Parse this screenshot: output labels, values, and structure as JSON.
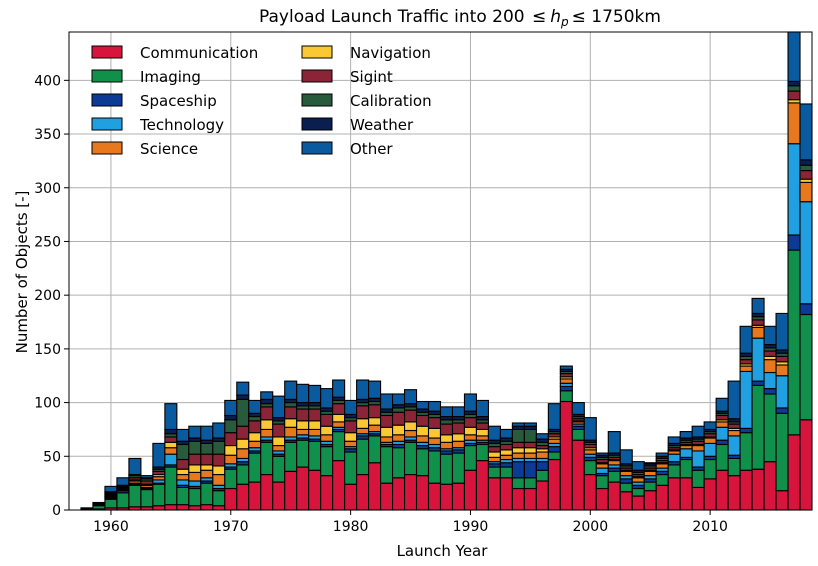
{
  "chart_data": {
    "type": "bar",
    "stacked": true,
    "title": "Payload Launch Traffic into 200 ≤ h_p ≤ 1750km",
    "title_parts": {
      "prefix": "Payload Launch Traffic into 200 ",
      "leq1": "≤",
      "var_main": "h",
      "var_sub": "p",
      "leq2": "≤",
      "suffix": " 1750km"
    },
    "xlabel": "Launch Year",
    "ylabel": "Number of Objects [-]",
    "xlim": [
      1956.5,
      2018.5
    ],
    "ylim": [
      0,
      445
    ],
    "xticks": [
      1960,
      1970,
      1980,
      1990,
      2000,
      2010
    ],
    "yticks": [
      0,
      50,
      100,
      150,
      200,
      250,
      300,
      350,
      400
    ],
    "grid": true,
    "legend_position": "top-left",
    "categories": [
      1957,
      1958,
      1959,
      1960,
      1961,
      1962,
      1963,
      1964,
      1965,
      1966,
      1967,
      1968,
      1969,
      1970,
      1971,
      1972,
      1973,
      1974,
      1975,
      1976,
      1977,
      1978,
      1979,
      1980,
      1981,
      1982,
      1983,
      1984,
      1985,
      1986,
      1987,
      1988,
      1989,
      1990,
      1991,
      1992,
      1993,
      1994,
      1995,
      1996,
      1997,
      1998,
      1999,
      2000,
      2001,
      2002,
      2003,
      2004,
      2005,
      2006,
      2007,
      2008,
      2009,
      2010,
      2011,
      2012,
      2013,
      2014,
      2015,
      2016,
      2017,
      2018
    ],
    "series": [
      {
        "name": "Communication",
        "color": "#d7143c",
        "values": [
          0,
          0,
          1,
          2,
          2,
          3,
          3,
          4,
          5,
          5,
          4,
          5,
          4,
          20,
          24,
          26,
          33,
          26,
          36,
          40,
          37,
          32,
          46,
          24,
          33,
          44,
          25,
          30,
          33,
          32,
          25,
          24,
          25,
          37,
          46,
          30,
          30,
          20,
          20,
          27,
          47,
          101,
          65,
          33,
          20,
          26,
          17,
          13,
          18,
          23,
          30,
          30,
          21,
          29,
          37,
          32,
          37,
          38,
          45,
          18,
          70,
          84
        ]
      },
      {
        "name": "Imaging",
        "color": "#10904a",
        "values": [
          0,
          1,
          3,
          8,
          14,
          20,
          16,
          20,
          35,
          16,
          16,
          20,
          14,
          18,
          18,
          27,
          30,
          24,
          27,
          25,
          27,
          27,
          27,
          30,
          33,
          25,
          34,
          28,
          30,
          25,
          30,
          28,
          28,
          23,
          15,
          10,
          10,
          10,
          10,
          10,
          7,
          10,
          10,
          13,
          12,
          10,
          8,
          7,
          8,
          10,
          12,
          17,
          16,
          18,
          24,
          16,
          35,
          78,
          63,
          72,
          172,
          98
        ]
      },
      {
        "name": "Spaceship",
        "color": "#0c3a96",
        "values": [
          0,
          0,
          0,
          1,
          2,
          1,
          1,
          1,
          2,
          2,
          2,
          2,
          2,
          2,
          3,
          2,
          2,
          2,
          2,
          2,
          2,
          2,
          2,
          3,
          3,
          2,
          2,
          3,
          2,
          3,
          3,
          3,
          3,
          2,
          2,
          3,
          4,
          15,
          15,
          8,
          5,
          4,
          3,
          3,
          2,
          3,
          4,
          3,
          3,
          3,
          3,
          2,
          3,
          3,
          4,
          3,
          4,
          4,
          5,
          5,
          14,
          10
        ]
      },
      {
        "name": "Technology",
        "color": "#20a0e0",
        "values": [
          0,
          0,
          1,
          1,
          0,
          1,
          1,
          3,
          10,
          5,
          5,
          3,
          3,
          3,
          3,
          3,
          3,
          3,
          3,
          3,
          3,
          3,
          2,
          2,
          2,
          2,
          2,
          3,
          3,
          3,
          3,
          2,
          2,
          3,
          2,
          2,
          3,
          3,
          3,
          3,
          3,
          3,
          2,
          3,
          5,
          3,
          3,
          3,
          3,
          3,
          7,
          8,
          15,
          12,
          12,
          18,
          53,
          40,
          15,
          30,
          85,
          95
        ]
      },
      {
        "name": "Science",
        "color": "#e8781e",
        "values": [
          0,
          0,
          1,
          1,
          1,
          2,
          2,
          3,
          6,
          5,
          8,
          7,
          10,
          8,
          9,
          6,
          7,
          5,
          9,
          5,
          6,
          6,
          5,
          5,
          5,
          6,
          5,
          6,
          6,
          6,
          6,
          6,
          6,
          5,
          4,
          4,
          4,
          5,
          5,
          6,
          4,
          4,
          2,
          4,
          4,
          4,
          4,
          4,
          4,
          4,
          3,
          3,
          5,
          5,
          5,
          5,
          5,
          10,
          12,
          10,
          38,
          18
        ]
      },
      {
        "name": "Navigation",
        "color": "#fac832",
        "values": [
          0,
          0,
          0,
          1,
          1,
          1,
          1,
          2,
          5,
          5,
          7,
          5,
          8,
          9,
          9,
          8,
          9,
          8,
          8,
          8,
          8,
          8,
          7,
          8,
          9,
          7,
          9,
          9,
          8,
          9,
          9,
          7,
          7,
          7,
          6,
          5,
          5,
          5,
          5,
          3,
          2,
          2,
          1,
          2,
          1,
          1,
          1,
          1,
          1,
          1,
          1,
          1,
          1,
          1,
          2,
          2,
          2,
          2,
          3,
          3,
          3,
          3
        ]
      },
      {
        "name": "Sigint",
        "color": "#8c2437",
        "values": [
          0,
          0,
          0,
          1,
          1,
          2,
          3,
          3,
          5,
          9,
          10,
          10,
          11,
          12,
          12,
          11,
          12,
          12,
          11,
          11,
          11,
          11,
          10,
          11,
          12,
          12,
          11,
          12,
          11,
          10,
          10,
          10,
          10,
          9,
          6,
          5,
          5,
          5,
          5,
          3,
          3,
          3,
          2,
          3,
          3,
          2,
          2,
          2,
          2,
          2,
          2,
          2,
          3,
          3,
          4,
          4,
          4,
          5,
          5,
          5,
          8,
          8
        ]
      },
      {
        "name": "Calibration",
        "color": "#285a3c",
        "values": [
          0,
          0,
          0,
          1,
          1,
          2,
          2,
          2,
          3,
          14,
          12,
          10,
          12,
          12,
          25,
          4,
          3,
          3,
          4,
          3,
          3,
          3,
          3,
          3,
          3,
          3,
          3,
          4,
          3,
          3,
          3,
          4,
          3,
          3,
          3,
          3,
          3,
          12,
          12,
          3,
          2,
          2,
          2,
          2,
          2,
          2,
          2,
          2,
          2,
          2,
          2,
          2,
          2,
          2,
          2,
          2,
          3,
          3,
          3,
          3,
          5,
          5
        ]
      },
      {
        "name": "Weather",
        "color": "#0a1e50",
        "values": [
          0,
          0,
          0,
          1,
          1,
          1,
          1,
          2,
          4,
          3,
          3,
          3,
          3,
          4,
          4,
          3,
          4,
          3,
          3,
          3,
          3,
          3,
          3,
          3,
          3,
          3,
          3,
          3,
          3,
          3,
          3,
          3,
          3,
          3,
          3,
          3,
          3,
          3,
          3,
          3,
          2,
          2,
          2,
          2,
          2,
          2,
          2,
          2,
          2,
          2,
          2,
          2,
          2,
          2,
          2,
          3,
          3,
          3,
          3,
          3,
          4,
          5
        ]
      },
      {
        "name": "Other",
        "color": "#0a5aa0",
        "values": [
          0,
          1,
          1,
          5,
          7,
          15,
          2,
          22,
          24,
          11,
          11,
          13,
          14,
          14,
          12,
          12,
          7,
          20,
          17,
          17,
          16,
          18,
          16,
          13,
          18,
          16,
          14,
          10,
          13,
          7,
          9,
          9,
          9,
          16,
          15,
          13,
          8,
          3,
          3,
          5,
          24,
          3,
          11,
          21,
          2,
          20,
          13,
          8,
          1,
          3,
          6,
          6,
          10,
          7,
          12,
          35,
          25,
          14,
          17,
          34,
          46,
          52
        ]
      }
    ]
  }
}
